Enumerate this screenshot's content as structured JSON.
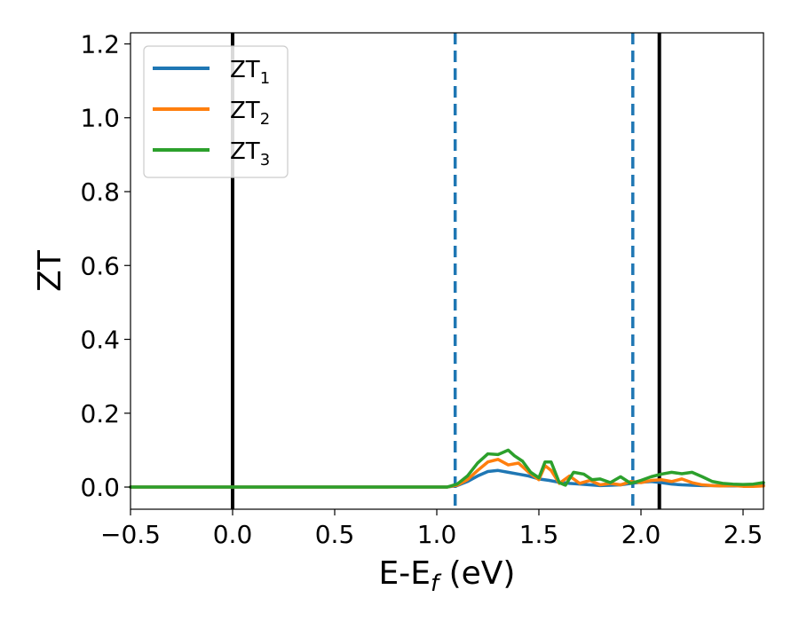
{
  "chart_data": {
    "type": "line",
    "title": "",
    "xlabel": {
      "main": "E-E",
      "sub": "f",
      "unit": " (eV)"
    },
    "ylabel": "ZT",
    "xlim": [
      -0.5,
      2.6
    ],
    "ylim": [
      -0.06,
      1.23
    ],
    "xticks": [
      -0.5,
      0.0,
      0.5,
      1.0,
      1.5,
      2.0,
      2.5
    ],
    "xtick_labels": [
      "−0.5",
      "0.0",
      "0.5",
      "1.0",
      "1.5",
      "2.0",
      "2.5"
    ],
    "yticks": [
      0.0,
      0.2,
      0.4,
      0.6,
      0.8,
      1.0,
      1.2
    ],
    "ytick_labels": [
      "0.0",
      "0.2",
      "0.4",
      "0.6",
      "0.8",
      "1.0",
      "1.2"
    ],
    "grid": false,
    "legend": "top-left",
    "vertical_lines": [
      {
        "x": 0.0,
        "style": "solid",
        "color": "#000000"
      },
      {
        "x": 1.09,
        "style": "dashed",
        "color": "#1f77b4"
      },
      {
        "x": 1.96,
        "style": "dashed",
        "color": "#1f77b4"
      },
      {
        "x": 2.09,
        "style": "solid",
        "color": "#000000"
      }
    ],
    "series": [
      {
        "name": "ZT",
        "sub": "1",
        "color": "#1f77b4",
        "x": [
          -0.5,
          1.05,
          1.1,
          1.15,
          1.2,
          1.25,
          1.3,
          1.35,
          1.4,
          1.45,
          1.5,
          1.55,
          1.6,
          1.65,
          1.7,
          1.75,
          1.8,
          1.85,
          1.9,
          1.95,
          2.0,
          2.05,
          2.1,
          2.15,
          2.2,
          2.25,
          2.3,
          2.35,
          2.4,
          2.45,
          2.5,
          2.55,
          2.6
        ],
        "y": [
          0.0,
          0.0,
          0.004,
          0.015,
          0.03,
          0.042,
          0.045,
          0.04,
          0.035,
          0.03,
          0.022,
          0.018,
          0.013,
          0.01,
          0.008,
          0.006,
          0.004,
          0.005,
          0.006,
          0.01,
          0.013,
          0.015,
          0.012,
          0.008,
          0.006,
          0.005,
          0.004,
          0.004,
          0.003,
          0.003,
          0.003,
          0.004,
          0.005
        ]
      },
      {
        "name": "ZT",
        "sub": "2",
        "color": "#ff7f0e",
        "x": [
          -0.5,
          1.05,
          1.1,
          1.15,
          1.2,
          1.25,
          1.3,
          1.35,
          1.4,
          1.45,
          1.5,
          1.53,
          1.56,
          1.6,
          1.65,
          1.7,
          1.75,
          1.8,
          1.85,
          1.9,
          1.95,
          2.0,
          2.05,
          2.1,
          2.15,
          2.2,
          2.25,
          2.3,
          2.35,
          2.4,
          2.45,
          2.5,
          2.55,
          2.6
        ],
        "y": [
          0.0,
          0.0,
          0.005,
          0.02,
          0.045,
          0.068,
          0.075,
          0.06,
          0.065,
          0.04,
          0.02,
          0.058,
          0.045,
          0.01,
          0.03,
          0.01,
          0.018,
          0.006,
          0.01,
          0.006,
          0.015,
          0.012,
          0.018,
          0.02,
          0.015,
          0.022,
          0.012,
          0.006,
          0.004,
          0.003,
          0.004,
          0.002,
          0.002,
          0.003
        ]
      },
      {
        "name": "ZT",
        "sub": "3",
        "color": "#2ca02c",
        "x": [
          -0.5,
          1.05,
          1.1,
          1.15,
          1.2,
          1.25,
          1.3,
          1.35,
          1.38,
          1.42,
          1.46,
          1.5,
          1.53,
          1.56,
          1.6,
          1.63,
          1.67,
          1.72,
          1.76,
          1.8,
          1.85,
          1.9,
          1.95,
          2.0,
          2.05,
          2.1,
          2.15,
          2.2,
          2.25,
          2.3,
          2.35,
          2.4,
          2.45,
          2.5,
          2.55,
          2.6
        ],
        "y": [
          0.0,
          0.0,
          0.008,
          0.03,
          0.065,
          0.09,
          0.088,
          0.1,
          0.085,
          0.07,
          0.04,
          0.025,
          0.068,
          0.068,
          0.012,
          0.005,
          0.04,
          0.035,
          0.02,
          0.022,
          0.012,
          0.028,
          0.01,
          0.018,
          0.028,
          0.035,
          0.04,
          0.036,
          0.04,
          0.028,
          0.015,
          0.01,
          0.008,
          0.007,
          0.008,
          0.012
        ]
      }
    ]
  }
}
